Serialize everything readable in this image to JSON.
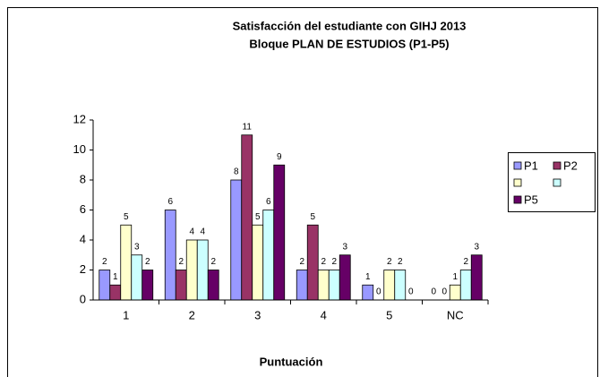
{
  "chart_data": {
    "type": "bar",
    "title": [
      "Satisfacción del estudiante con GIHJ 2013",
      "Bloque PLAN DE ESTUDIOS (P1-P5)"
    ],
    "x_label": "Puntuación",
    "categories": [
      "1",
      "2",
      "3",
      "4",
      "5",
      "NC"
    ],
    "series": [
      {
        "name": "P1",
        "color": "#9999ff",
        "values": [
          2,
          6,
          8,
          2,
          1,
          0
        ]
      },
      {
        "name": "P2",
        "color": "#993366",
        "values": [
          1,
          2,
          11,
          5,
          0,
          0
        ]
      },
      {
        "color": "#ffffcc",
        "values": [
          5,
          4,
          5,
          2,
          2,
          1
        ]
      },
      {
        "color": "#ccffff",
        "values": [
          3,
          4,
          6,
          2,
          2,
          2
        ]
      },
      {
        "name": "P5",
        "color": "#660066",
        "values": [
          2,
          2,
          9,
          3,
          0,
          3
        ]
      }
    ],
    "ylim": [
      0,
      12
    ],
    "yticks": [
      0,
      2,
      4,
      6,
      8,
      10,
      12
    ],
    "legend": "right"
  }
}
